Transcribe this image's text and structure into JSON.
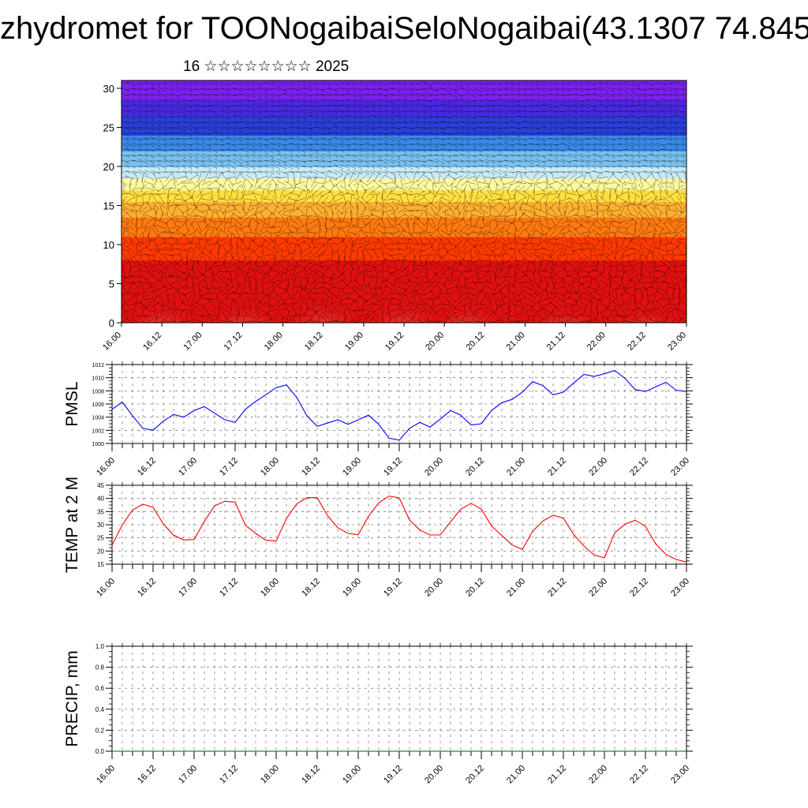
{
  "header": {
    "title": "zhydromet for TOONogaibaiSeloNogaibai(43.1307 74.845",
    "subtitle": "16 ☆☆☆☆☆☆☆☆ 2025"
  },
  "colors": {
    "pmsl_line": "#0000ff",
    "temp_line": "#ff0000",
    "precip_line": "#006400",
    "frame": "#000000"
  },
  "chart_data": [
    {
      "type": "heatmap",
      "name": "vertical-cross-section",
      "ylim": [
        0,
        31
      ],
      "yticks": [
        0,
        5,
        10,
        15,
        20,
        25,
        30
      ],
      "xticks": [
        "16.00",
        "16.12",
        "17.00",
        "17.12",
        "18.00",
        "18.12",
        "19.00",
        "19.12",
        "20.00",
        "20.12",
        "21.00",
        "21.12",
        "22.00",
        "22.12",
        "23.00"
      ],
      "bands": [
        {
          "from": 0,
          "to": 8,
          "color": "#e01010"
        },
        {
          "from": 8,
          "to": 11,
          "color": "#ff3a00"
        },
        {
          "from": 11,
          "to": 13.5,
          "color": "#ff7a10"
        },
        {
          "from": 13.5,
          "to": 15.5,
          "color": "#ffb030"
        },
        {
          "from": 15.5,
          "to": 17,
          "color": "#ffe040"
        },
        {
          "from": 17,
          "to": 18.5,
          "color": "#fff9a0"
        },
        {
          "from": 18.5,
          "to": 20,
          "color": "#c8eaf8"
        },
        {
          "from": 20,
          "to": 22,
          "color": "#78c0f0"
        },
        {
          "from": 22,
          "to": 24,
          "color": "#3a88e8"
        },
        {
          "from": 24,
          "to": 26.5,
          "color": "#2a3ed8"
        },
        {
          "from": 26.5,
          "to": 28.5,
          "color": "#4a28e0"
        },
        {
          "from": 28.5,
          "to": 31,
          "color": "#7a22ee"
        }
      ],
      "warm_cells": [
        {
          "x": 0.5,
          "height": 5.8
        },
        {
          "x": 1.5,
          "height": 6.0
        },
        {
          "x": 2.5,
          "height": 7.2
        },
        {
          "x": 3.5,
          "height": 6.8
        },
        {
          "x": 4.3,
          "height": 5.2
        },
        {
          "x": 5.5,
          "height": 4.5
        },
        {
          "x": 6.5,
          "height": 3.8
        }
      ]
    },
    {
      "type": "line",
      "name": "pmsl",
      "ylabel": "PMSL",
      "ylim": [
        1000,
        1012
      ],
      "yticks": [
        1000,
        1002,
        1004,
        1006,
        1008,
        1010,
        1012
      ],
      "xticks": [
        "16.00",
        "16.12",
        "17.00",
        "17.12",
        "18.00",
        "18.12",
        "19.00",
        "19.12",
        "20.00",
        "20.12",
        "21.00",
        "21.12",
        "22.00",
        "22.12",
        "23.00"
      ],
      "x_range": [
        0,
        7
      ],
      "series": [
        {
          "x": [
            0,
            0.125,
            0.25,
            0.375,
            0.5,
            0.625,
            0.75,
            0.875,
            1,
            1.125,
            1.25,
            1.375,
            1.5,
            1.625,
            1.75,
            1.875,
            2,
            2.125,
            2.25,
            2.375,
            2.5,
            2.625,
            2.75,
            2.875,
            3,
            3.125,
            3.25,
            3.375,
            3.5,
            3.625,
            3.75,
            3.875,
            4,
            4.125,
            4.25,
            4.375,
            4.5,
            4.625,
            4.75,
            4.875,
            5,
            5.125,
            5.25,
            5.375,
            5.5,
            5.625,
            5.75,
            5.875,
            6,
            6.125,
            6.25,
            6.375,
            6.5,
            6.625,
            6.75,
            6.875,
            7
          ],
          "values": [
            1005.2,
            1006.3,
            1004.2,
            1002.3,
            1002.0,
            1003.4,
            1004.4,
            1004.0,
            1005.0,
            1005.6,
            1004.6,
            1003.6,
            1003.2,
            1005.2,
            1006.4,
            1007.4,
            1008.5,
            1008.9,
            1007.0,
            1004.2,
            1002.6,
            1003.1,
            1003.6,
            1002.9,
            1003.6,
            1004.3,
            1002.9,
            1000.8,
            1000.5,
            1002.3,
            1003.2,
            1002.5,
            1003.7,
            1005.0,
            1004.3,
            1002.8,
            1003.0,
            1005.0,
            1006.2,
            1006.7,
            1007.8,
            1009.4,
            1008.8,
            1007.4,
            1007.8,
            1009.2,
            1010.5,
            1010.2,
            1010.6,
            1011.1,
            1009.9,
            1008.2,
            1007.9,
            1008.6,
            1009.3,
            1008.1,
            1007.9
          ]
        }
      ]
    },
    {
      "type": "line",
      "name": "temp",
      "ylabel": "TEMP at 2 M",
      "ylim": [
        15,
        45
      ],
      "yticks": [
        15,
        20,
        25,
        30,
        35,
        40,
        45
      ],
      "xticks": [
        "16.00",
        "16.12",
        "17.00",
        "17.12",
        "18.00",
        "18.12",
        "19.00",
        "19.12",
        "20.00",
        "20.12",
        "21.00",
        "21.12",
        "22.00",
        "22.12",
        "23.00"
      ],
      "x_range": [
        0,
        7
      ],
      "series": [
        {
          "x": [
            0,
            0.125,
            0.25,
            0.375,
            0.5,
            0.625,
            0.75,
            0.875,
            1,
            1.125,
            1.25,
            1.375,
            1.5,
            1.625,
            1.75,
            1.875,
            2,
            2.125,
            2.25,
            2.375,
            2.5,
            2.625,
            2.75,
            2.875,
            3,
            3.125,
            3.25,
            3.375,
            3.5,
            3.625,
            3.75,
            3.875,
            4,
            4.125,
            4.25,
            4.375,
            4.5,
            4.625,
            4.75,
            4.875,
            5,
            5.125,
            5.25,
            5.375,
            5.5,
            5.625,
            5.75,
            5.875,
            6,
            6.125,
            6.25,
            6.375,
            6.5,
            6.625,
            6.75,
            6.875,
            7
          ],
          "values": [
            22.2,
            29.9,
            35.6,
            37.8,
            36.6,
            30.3,
            26.0,
            24.2,
            24.4,
            31.3,
            37.2,
            38.9,
            38.6,
            29.8,
            26.7,
            24.1,
            23.8,
            32.4,
            37.9,
            40.3,
            40.3,
            33.5,
            28.9,
            26.7,
            26.2,
            33.2,
            38.3,
            40.9,
            40.2,
            31.8,
            28.0,
            26.1,
            26.1,
            31.1,
            35.9,
            38.2,
            35.9,
            29.5,
            25.9,
            22.3,
            20.6,
            27.5,
            31.4,
            33.6,
            32.5,
            26.3,
            21.9,
            18.5,
            17.4,
            26.9,
            30.2,
            31.7,
            29.4,
            22.7,
            18.7,
            16.8,
            15.8
          ]
        }
      ]
    },
    {
      "type": "line",
      "name": "precip",
      "ylabel": "PRECIP, mm",
      "ylim": [
        0,
        1
      ],
      "yticks": [
        "0.0",
        "0.2",
        "0.4",
        "0.6",
        "0.8",
        "1.0"
      ],
      "xticks": [
        "16.00",
        "16.12",
        "17.00",
        "17.12",
        "18.00",
        "18.12",
        "19.00",
        "19.12",
        "20.00",
        "20.12",
        "21.00",
        "21.12",
        "22.00",
        "22.12",
        "23.00"
      ],
      "x_range": [
        0,
        7
      ],
      "series": [
        {
          "x": [
            0,
            7
          ],
          "values": [
            0,
            0
          ]
        }
      ]
    }
  ]
}
